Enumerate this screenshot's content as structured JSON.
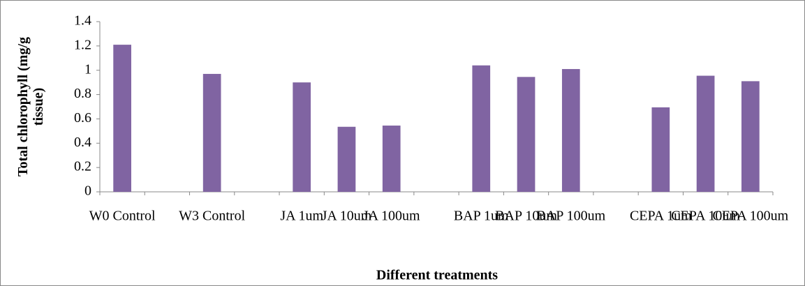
{
  "chart_data": {
    "type": "bar",
    "x_label": "Different treatments",
    "y_label": "Total chlorophyll (mg/g tissue)",
    "categories": [
      "W0 Control",
      null,
      "W3 Control",
      null,
      "JA 1um",
      "JA 10um",
      "JA 100um",
      null,
      "BAP 1um",
      "BAP 10um",
      "BAP 100um",
      null,
      "CEPA 1um",
      "CEPA 10um",
      "CEPA 100um"
    ],
    "values": [
      1.21,
      null,
      0.97,
      null,
      0.9,
      0.535,
      0.545,
      null,
      1.04,
      0.945,
      1.01,
      null,
      0.695,
      0.955,
      0.91
    ],
    "color": "#8064a2",
    "ylim": [
      0,
      1.4
    ],
    "yticks": [
      0,
      0.2,
      0.4,
      0.6,
      0.8,
      1,
      1.2,
      1.4
    ],
    "grid": false
  }
}
